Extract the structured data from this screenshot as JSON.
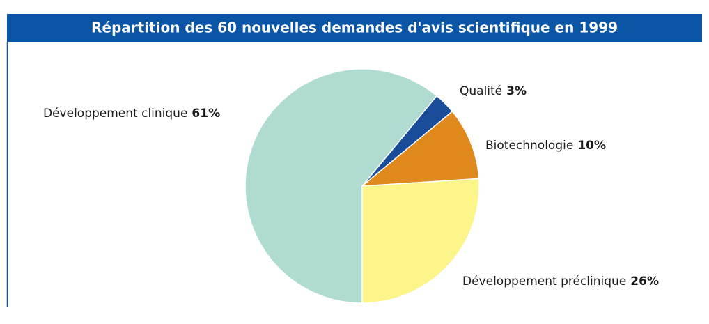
{
  "chart_data": {
    "type": "pie",
    "title": "Répartition des 60 nouvelles demandes d'avis scientifique en 1999",
    "categories": [
      "Qualité",
      "Biotechnologie",
      "Développement préclinique",
      "Développement clinique"
    ],
    "values": [
      3,
      10,
      26,
      61
    ],
    "value_labels": [
      "3%",
      "10%",
      "26%",
      "61%"
    ],
    "colors": [
      "#1a4d99",
      "#e08a1e",
      "#fdf58a",
      "#b0dbd1"
    ]
  }
}
